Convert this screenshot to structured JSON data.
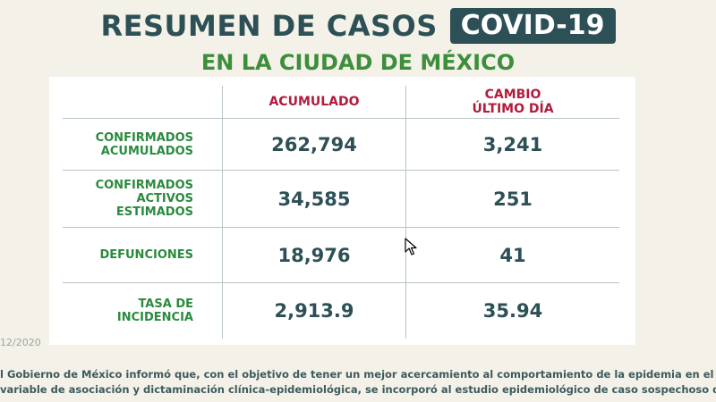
{
  "header": {
    "title": "RESUMEN DE CASOS",
    "badge": "COVID-19",
    "subtitle": "EN LA CIUDAD DE MÉXICO"
  },
  "table": {
    "columns": {
      "accumulated": "ACUMULADO",
      "change_line1": "CAMBIO",
      "change_line2": "ÚLTIMO DÍA"
    },
    "rows": [
      {
        "label_lines": [
          "CONFIRMADOS",
          "ACUMULADOS"
        ],
        "accumulated": "262,794",
        "change": "3,241"
      },
      {
        "label_lines": [
          "CONFIRMADOS",
          "ACTIVOS",
          "ESTIMADOS"
        ],
        "accumulated": "34,585",
        "change": "251"
      },
      {
        "label_lines": [
          "DEFUNCIONES"
        ],
        "accumulated": "18,976",
        "change": "41"
      },
      {
        "label_lines": [
          "TASA DE",
          "INCIDENCIA"
        ],
        "accumulated": "2,913.9",
        "change": "35.94"
      }
    ]
  },
  "date_fragment": "12/2020",
  "footer": {
    "line1": "l Gobierno de México informó que, con el objetivo de tener un mejor acercamiento al comportamiento de la epidemia en el país,",
    "line2": "variable de asociación y dictaminación clínica-epidemiológica, se incorporó al estudio epidemiológico de caso sospechoso de"
  },
  "colors": {
    "background": "#f4f1e8",
    "title_teal": "#2d5056",
    "subtitle_green": "#3d8e3b",
    "header_red": "#b01c3c",
    "row_label_green": "#2a8a3e"
  },
  "icons": {
    "cursor": "mouse-pointer-icon"
  }
}
